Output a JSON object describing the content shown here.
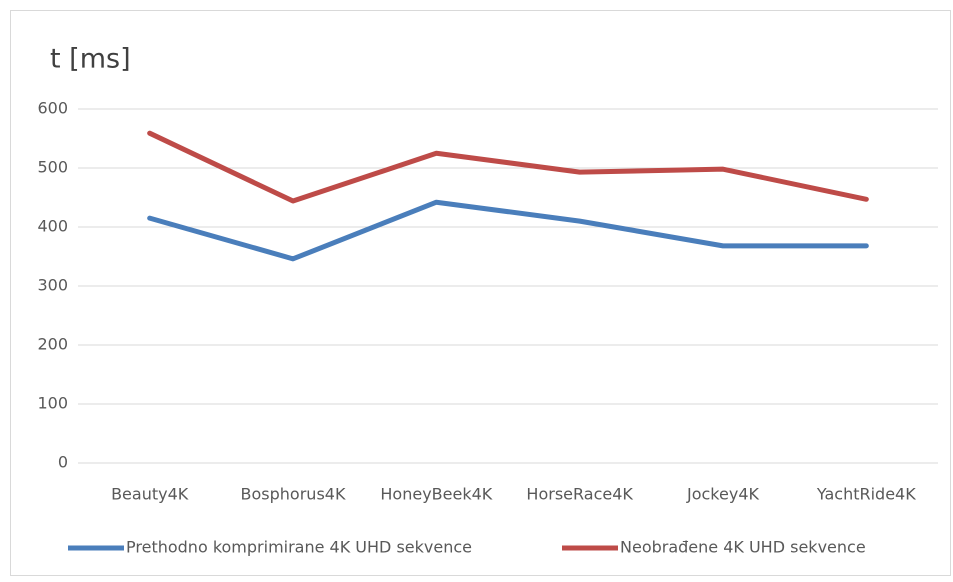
{
  "chart_data": {
    "type": "line",
    "y_label": "t [ms]",
    "categories": [
      "Beauty4K",
      "Bosphorus4K",
      "HoneyBeek4K",
      "HorseRace4K",
      "Jockey4K",
      "YachtRide4K"
    ],
    "series": [
      {
        "name": "Prethodno komprimirane 4K UHD sekvence",
        "color": "#4a7ebb",
        "values": [
          415,
          346,
          442,
          410,
          368,
          368
        ]
      },
      {
        "name": "Neobrađene 4K UHD sekvence",
        "color": "#be4b48",
        "values": [
          559,
          444,
          525,
          493,
          498,
          447
        ]
      }
    ],
    "ylim": [
      0,
      600
    ],
    "yticks": [
      0,
      100,
      200,
      300,
      400,
      500,
      600
    ],
    "grid": true,
    "legend": "bottom"
  }
}
